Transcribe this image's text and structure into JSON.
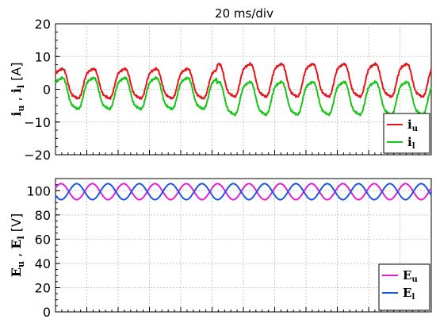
{
  "chart_data": [
    {
      "type": "line",
      "title": "20 ms/div",
      "ylabel_parts": [
        "i",
        "u",
        " , ",
        "i",
        "l",
        " [A]"
      ],
      "ylim": [
        -20,
        20
      ],
      "yticks": [
        20,
        10,
        0,
        -10,
        -20
      ],
      "ytick_labels": [
        "20",
        "10",
        "0",
        "−10",
        "−20"
      ],
      "xlim": [
        0,
        240
      ],
      "x_unit": "ms",
      "grid": true,
      "legend_position": "bottom-right",
      "series": [
        {
          "name_base": "i",
          "name_sub": "u",
          "color": "#e8141b",
          "description": "sinusoid ~20 ms period: ~0 to ~+6.5 A (swing -3..+6.5) for first half, then swing -2.5..+8 A after step",
          "segments": [
            {
              "t_start": 0,
              "t_end": 103,
              "offset": 1.75,
              "amplitude": 4.75,
              "period_ms": 20
            },
            {
              "t_start": 103,
              "t_end": 240,
              "offset": 2.75,
              "amplitude": 5.25,
              "period_ms": 20
            }
          ]
        },
        {
          "name_base": "i",
          "name_sub": "l",
          "color": "#19c419",
          "description": "sinusoid ~20 ms period: ~-6..+4 A for first half, then ~-8..+2.5 A after step",
          "segments": [
            {
              "t_start": 0,
              "t_end": 103,
              "offset": -1.25,
              "amplitude": 5.0,
              "period_ms": 20
            },
            {
              "t_start": 103,
              "t_end": 240,
              "offset": -2.75,
              "amplitude": 5.25,
              "period_ms": 20
            }
          ]
        }
      ]
    },
    {
      "type": "line",
      "ylabel_parts": [
        "E",
        "u",
        " , ",
        "E",
        "l",
        " [V]"
      ],
      "ylim": [
        0,
        110
      ],
      "yticks": [
        100,
        80,
        60,
        40,
        20,
        0
      ],
      "ytick_labels": [
        "100",
        "80",
        "60",
        "40",
        "20",
        "0"
      ],
      "xlim": [
        0,
        240
      ],
      "x_unit": "ms",
      "grid": true,
      "legend_position": "bottom-right",
      "series": [
        {
          "name_base": "E",
          "name_sub": "u",
          "color": "#e020d8",
          "description": "sinusoid between ~92 and ~106 V, ~20 ms period",
          "offset": 99.2,
          "amplitude": 6.6,
          "period_ms": 20,
          "phase": 0
        },
        {
          "name_base": "E",
          "name_sub": "l",
          "color": "#1a56e0",
          "description": "sinusoid between ~92 and ~106 V, ~20 ms period, opposite phase to E_u",
          "offset": 99.2,
          "amplitude": 6.6,
          "period_ms": 20,
          "phase": 3.14159
        }
      ]
    }
  ]
}
